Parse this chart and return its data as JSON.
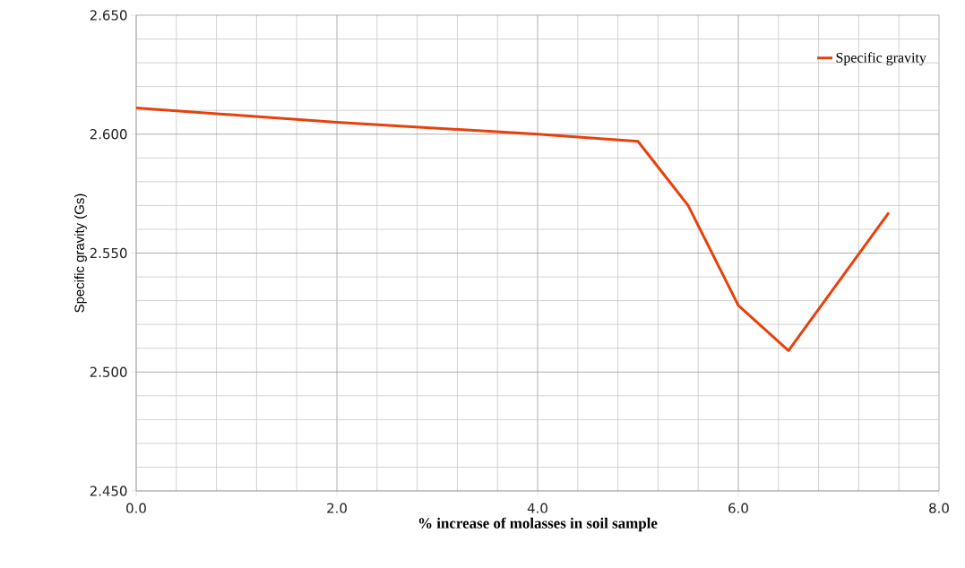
{
  "chart_data": {
    "type": "line",
    "xlabel": "% increase of molasses in soil sample",
    "ylabel": "Specific gravity (Gs)",
    "x": [
      0,
      2,
      4,
      5,
      5.5,
      6,
      6.5,
      7.5
    ],
    "series": [
      {
        "name": "Specific gravity",
        "color": "#e8400c",
        "values": [
          2.611,
          2.605,
          2.6,
          2.597,
          2.57,
          2.528,
          2.509,
          2.567
        ]
      }
    ],
    "xlim": [
      0,
      8
    ],
    "ylim": [
      2.45,
      2.65
    ],
    "xticks": [
      {
        "value": 0,
        "label": "0.0"
      },
      {
        "value": 2,
        "label": "2.0"
      },
      {
        "value": 4,
        "label": "4.0"
      },
      {
        "value": 6,
        "label": "6.0"
      },
      {
        "value": 8,
        "label": "8.0"
      }
    ],
    "yticks": [
      {
        "value": 2.45,
        "label": "2.450"
      },
      {
        "value": 2.5,
        "label": "2.500"
      },
      {
        "value": 2.55,
        "label": "2.550"
      },
      {
        "value": 2.6,
        "label": "2.600"
      },
      {
        "value": 2.65,
        "label": "2.650"
      }
    ],
    "grid": true,
    "legend": "top right",
    "marker": "none",
    "line_style": "solid"
  }
}
